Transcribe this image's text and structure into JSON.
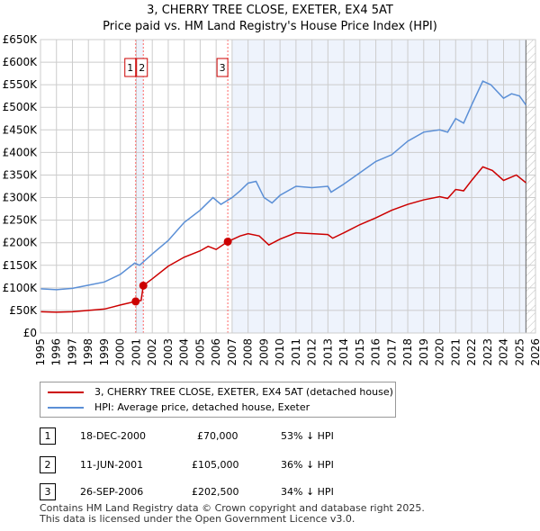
{
  "title_line1": "3, CHERRY TREE CLOSE, EXETER, EX4 5AT",
  "title_line2": "Price paid vs. HM Land Registry's House Price Index (HPI)",
  "colors": {
    "property": "#cc0000",
    "hpi": "#5b8fd6",
    "shade": "#eef3fc",
    "marker_line": "#ff6666"
  },
  "chart_data": {
    "type": "line",
    "title": "Price paid vs. HM Land Registry's House Price Index (HPI)",
    "xlim": [
      1995,
      2026
    ],
    "ylim": [
      0,
      650000
    ],
    "x_ticks": [
      "1995",
      "1996",
      "1997",
      "1998",
      "1999",
      "2000",
      "2001",
      "2002",
      "2003",
      "2004",
      "2005",
      "2006",
      "2007",
      "2008",
      "2009",
      "2010",
      "2011",
      "2012",
      "2013",
      "2014",
      "2015",
      "2016",
      "2017",
      "2018",
      "2019",
      "2020",
      "2021",
      "2022",
      "2023",
      "2024",
      "2025",
      "2026"
    ],
    "y_ticks": [
      {
        "v": 0,
        "label": "£0"
      },
      {
        "v": 50000,
        "label": "£50K"
      },
      {
        "v": 100000,
        "label": "£100K"
      },
      {
        "v": 150000,
        "label": "£150K"
      },
      {
        "v": 200000,
        "label": "£200K"
      },
      {
        "v": 250000,
        "label": "£250K"
      },
      {
        "v": 300000,
        "label": "£300K"
      },
      {
        "v": 350000,
        "label": "£350K"
      },
      {
        "v": 400000,
        "label": "£400K"
      },
      {
        "v": 450000,
        "label": "£450K"
      },
      {
        "v": 500000,
        "label": "£500K"
      },
      {
        "v": 550000,
        "label": "£550K"
      },
      {
        "v": 600000,
        "label": "£600K"
      },
      {
        "v": 650000,
        "label": "£650K"
      }
    ],
    "grid": true,
    "series": [
      {
        "name": "HPI: Average price, detached house, Exeter",
        "color": "#5b8fd6",
        "x": [
          1995,
          1996,
          1997,
          1998,
          1999,
          2000,
          2000.9,
          2001.2,
          2002,
          2003,
          2004,
          2005,
          2005.8,
          2006.3,
          2007,
          2007.5,
          2008,
          2008.5,
          2009,
          2009.5,
          2010,
          2011,
          2012,
          2013,
          2013.2,
          2014,
          2015,
          2016,
          2017,
          2018,
          2019,
          2020,
          2020.5,
          2021,
          2021.5,
          2022,
          2022.7,
          2023.2,
          2024,
          2024.5,
          2025,
          2025.4
        ],
        "y": [
          98000,
          96000,
          99000,
          106000,
          113000,
          130000,
          155000,
          150000,
          175000,
          205000,
          245000,
          272000,
          300000,
          285000,
          300000,
          315000,
          332000,
          336000,
          300000,
          288000,
          305000,
          325000,
          322000,
          325000,
          312000,
          330000,
          355000,
          380000,
          395000,
          425000,
          445000,
          450000,
          445000,
          475000,
          465000,
          505000,
          558000,
          550000,
          520000,
          530000,
          525000,
          505000
        ]
      },
      {
        "name": "3, CHERRY TREE CLOSE, EXETER, EX4 5AT (detached house)",
        "color": "#cc0000",
        "x": [
          1995,
          1996,
          1997,
          1998,
          1999,
          2000,
          2000.96,
          2001.3,
          2001.44,
          2002,
          2003,
          2004,
          2005,
          2005.5,
          2006,
          2006.73,
          2007.5,
          2008,
          2008.7,
          2009.3,
          2010,
          2011,
          2012,
          2013,
          2013.3,
          2014,
          2015,
          2016,
          2017,
          2018,
          2019,
          2020,
          2020.5,
          2021,
          2021.5,
          2022,
          2022.7,
          2023.3,
          2024,
          2024.8,
          2025.4
        ],
        "y": [
          47000,
          46000,
          47000,
          50000,
          53000,
          62000,
          70000,
          72000,
          105000,
          120000,
          148000,
          168000,
          182000,
          192000,
          185000,
          202500,
          215000,
          220000,
          215000,
          195000,
          208000,
          222000,
          220000,
          218000,
          210000,
          222000,
          240000,
          255000,
          272000,
          285000,
          295000,
          302000,
          298000,
          318000,
          315000,
          338000,
          368000,
          360000,
          338000,
          350000,
          333000
        ]
      }
    ],
    "sales": [
      {
        "label": "1",
        "x": 2000.96,
        "y": 70000
      },
      {
        "label": "2",
        "x": 2001.44,
        "y": 105000
      },
      {
        "label": "3",
        "x": 2006.73,
        "y": 202500
      }
    ],
    "shaded_ranges": [
      [
        2000.96,
        2001.44
      ],
      [
        2007.0,
        2025.4
      ]
    ],
    "hatched_from": 2025.4,
    "legend_placement": "below"
  },
  "legend": {
    "property": "3, CHERRY TREE CLOSE, EXETER, EX4 5AT (detached house)",
    "hpi": "HPI: Average price, detached house, Exeter"
  },
  "transactions": [
    {
      "num": "1",
      "date": "18-DEC-2000",
      "price": "£70,000",
      "hpi": "53% ↓ HPI"
    },
    {
      "num": "2",
      "date": "11-JUN-2001",
      "price": "£105,000",
      "hpi": "36% ↓ HPI"
    },
    {
      "num": "3",
      "date": "26-SEP-2006",
      "price": "£202,500",
      "hpi": "34% ↓ HPI"
    }
  ],
  "footer_line1": "Contains HM Land Registry data © Crown copyright and database right 2025.",
  "footer_line2": "This data is licensed under the Open Government Licence v3.0."
}
